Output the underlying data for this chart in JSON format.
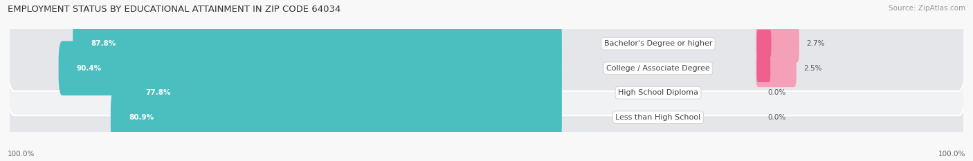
{
  "title": "EMPLOYMENT STATUS BY EDUCATIONAL ATTAINMENT IN ZIP CODE 64034",
  "source": "Source: ZipAtlas.com",
  "categories": [
    "Less than High School",
    "High School Diploma",
    "College / Associate Degree",
    "Bachelor's Degree or higher"
  ],
  "in_labor_force": [
    80.9,
    77.8,
    90.4,
    87.8
  ],
  "unemployed": [
    0.0,
    0.0,
    2.5,
    2.7
  ],
  "labor_force_color": "#4BBFBF",
  "unemployed_color_light": "#F4A0B8",
  "unemployed_color_dark": "#EE6090",
  "row_bg_even": "#F0F2F4",
  "row_bg_odd": "#E4E6EA",
  "title_fontsize": 9.5,
  "source_fontsize": 7.5,
  "bar_label_fontsize": 7.5,
  "category_fontsize": 8,
  "legend_fontsize": 8,
  "axis_fontsize": 7.5,
  "bar_height": 0.62,
  "axis_label_left": "100.0%",
  "axis_label_right": "100.0%"
}
